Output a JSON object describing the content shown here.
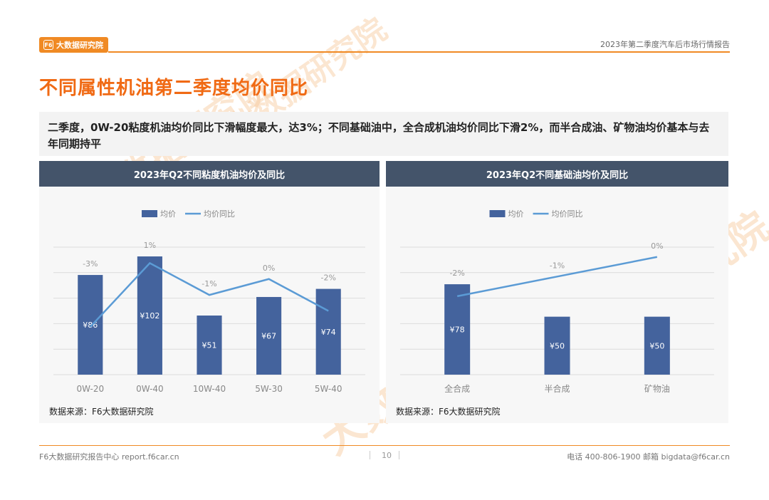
{
  "header": {
    "logo_text": "大数据研究院",
    "logo_mark": "F6",
    "report_title": "2023年第二季度汽车后市场行情报告"
  },
  "page_title": "不同属性机油第二季度均价同比",
  "summary": "二季度，0W-20粘度机油均价同比下滑幅度最大，达3%；不同基础油中，全合成机油均价同比下滑2%，而半合成油、矿物油均价基本与去年同期持平",
  "watermark_text": "大数据研究院",
  "chart_data": [
    {
      "type": "bar",
      "title": "2023年Q2不同粘度机油均价及同比",
      "categories": [
        "0W-20",
        "0W-40",
        "10W-40",
        "5W-30",
        "5W-40"
      ],
      "series": [
        {
          "name": "均价",
          "kind": "bar",
          "values": [
            86,
            102,
            51,
            67,
            74
          ],
          "labels": [
            "¥86",
            "¥102",
            "¥51",
            "¥67",
            "¥74"
          ],
          "color": "#44639d"
        },
        {
          "name": "均价同比",
          "kind": "line",
          "values": [
            -3,
            1,
            -1,
            0,
            -2
          ],
          "labels": [
            "-3%",
            "1%",
            "-1%",
            "0%",
            "-2%"
          ],
          "color": "#5b9bd5"
        }
      ],
      "ylim": [
        0,
        110
      ],
      "line_ylim": [
        -6,
        2
      ],
      "grid": true,
      "legend": "top-center",
      "source": "数据来源：F6大数据研究院"
    },
    {
      "type": "bar",
      "title": "2023年Q2不同基础油均价及同比",
      "categories": [
        "全合成",
        "半合成",
        "矿物油"
      ],
      "series": [
        {
          "name": "均价",
          "kind": "bar",
          "values": [
            78,
            50,
            50
          ],
          "labels": [
            "¥78",
            "¥50",
            "¥50"
          ],
          "color": "#44639d"
        },
        {
          "name": "均价同比",
          "kind": "line",
          "values": [
            -2,
            -1,
            0
          ],
          "labels": [
            "-2%",
            "-1%",
            "0%"
          ],
          "color": "#5b9bd5"
        }
      ],
      "ylim": [
        0,
        110
      ],
      "line_ylim": [
        -6,
        0.5
      ],
      "grid": true,
      "legend": "top-center",
      "source": "数据来源：F6大数据研究院"
    }
  ],
  "footer": {
    "left": "F6大数据研究报告中心 report.f6car.cn",
    "page": "10",
    "right": "电话 400-806-1900  邮箱 bigdata@f6car.cn"
  }
}
